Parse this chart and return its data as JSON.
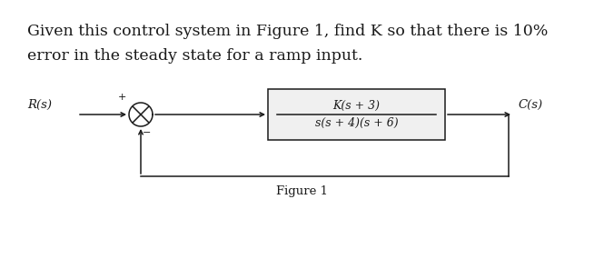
{
  "title_line1": "Given this control system in Figure 1, find K so that there is 10%",
  "title_line2": "error in the steady state for a ramp input.",
  "figure_label": "Figure 1",
  "R_label": "R(s)",
  "C_label": "C(s)",
  "box_numerator": "K(s + 3)",
  "box_denominator": "s(s + 4)(s + 6)",
  "plus_label": "+",
  "minus_label": "−",
  "bg_color": "#ffffff",
  "text_color": "#1a1a1a",
  "line_color": "#1a1a1a",
  "font_size_title": 12.5,
  "font_size_diagram": 9.5,
  "font_size_box": 9.0,
  "font_size_figure": 9.5
}
